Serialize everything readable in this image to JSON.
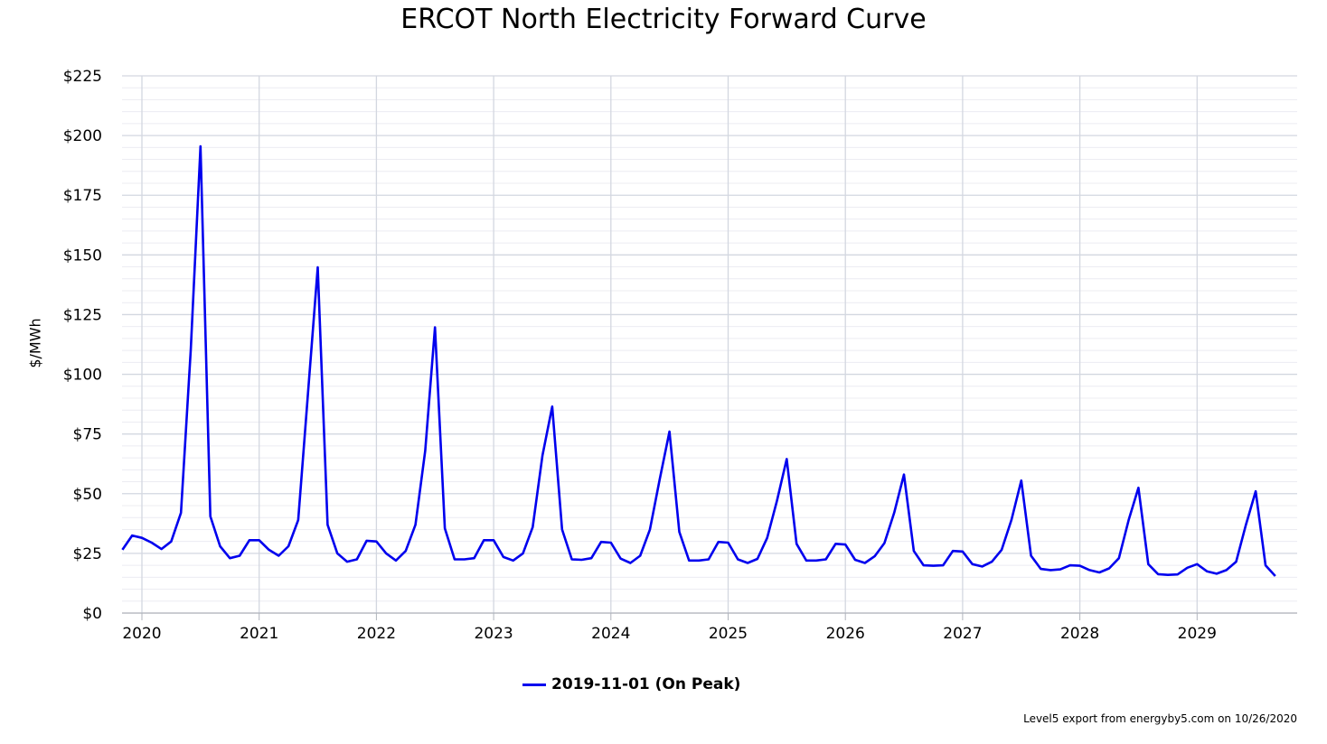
{
  "chart_data": {
    "type": "line",
    "title": "ERCOT North Electricity Forward Curve",
    "xlabel": "",
    "ylabel": "$/MWh",
    "ylim": [
      0,
      225
    ],
    "yticks": [
      "$0",
      "$25",
      "$50",
      "$75",
      "$100",
      "$125",
      "$150",
      "$175",
      "$200",
      "$225"
    ],
    "ytick_values": [
      0,
      25,
      50,
      75,
      100,
      125,
      150,
      175,
      200,
      225
    ],
    "xtick_labels": [
      "2020",
      "2021",
      "2022",
      "2023",
      "2024",
      "2025",
      "2026",
      "2027",
      "2028",
      "2029"
    ],
    "x_start": "2019-11",
    "x_end": "2029-10",
    "grid": true,
    "legend_position": "bottom-center",
    "series": [
      {
        "name": "2019-11-01 (On Peak)",
        "color": "#0000ee",
        "values": [
          26.5,
          32.5,
          31.5,
          29.5,
          26.8,
          30.0,
          42.0,
          110.0,
          195.5,
          40.5,
          28.0,
          23.0,
          24.0,
          30.5,
          30.5,
          26.5,
          24.0,
          28.0,
          39.0,
          92.0,
          144.8,
          37.0,
          25.0,
          21.5,
          22.5,
          30.3,
          30.0,
          25.0,
          22.0,
          26.0,
          37.0,
          68.0,
          119.7,
          35.5,
          22.5,
          22.5,
          23.0,
          30.5,
          30.5,
          23.5,
          22.0,
          25.0,
          36.0,
          66.0,
          86.5,
          35.0,
          22.5,
          22.3,
          23.0,
          29.8,
          29.5,
          22.8,
          21.0,
          24.0,
          35.0,
          56.0,
          76.0,
          34.0,
          22.0,
          22.0,
          22.5,
          29.8,
          29.5,
          22.5,
          21.0,
          22.7,
          31.5,
          47.0,
          64.5,
          29.0,
          22.0,
          22.0,
          22.5,
          29.0,
          28.7,
          22.3,
          21.0,
          23.8,
          29.3,
          42.0,
          58.0,
          26.0,
          20.0,
          19.8,
          20.0,
          26.0,
          25.8,
          20.5,
          19.5,
          21.5,
          26.5,
          39.0,
          55.5,
          24.0,
          18.5,
          18.0,
          18.3,
          20.0,
          19.8,
          18.0,
          17.0,
          18.7,
          23.0,
          39.0,
          52.5,
          20.5,
          16.3,
          16.0,
          16.2,
          19.0,
          20.5,
          17.5,
          16.5,
          18.0,
          21.5,
          37.0,
          51.0,
          20.0,
          15.5
        ]
      }
    ]
  },
  "credit_text": "Level5 export from energyby5.com on 10/26/2020"
}
